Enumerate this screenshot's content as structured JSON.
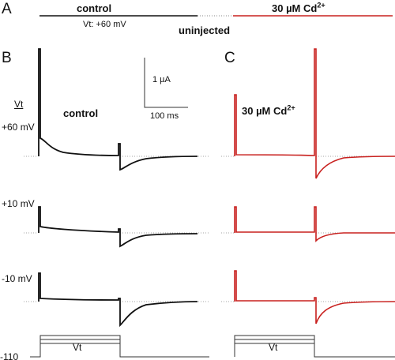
{
  "panels": {
    "a": "A",
    "b": "B",
    "c": "C"
  },
  "header": {
    "control": "control",
    "cd_prefix": "30 µM Cd",
    "cd_sup": "2+",
    "vt_note": "Vt: +60 mV",
    "uninjected": "uninjected"
  },
  "traces": {
    "vt_label": "Vt",
    "plus60": "+60 mV",
    "plus10": "+10 mV",
    "minus10": "-10 mV",
    "col_control": "control",
    "col_cd_prefix": "30 µM Cd",
    "col_cd_sup": "2+"
  },
  "scale_bar": {
    "current": "1 µA",
    "time": "100 ms"
  },
  "protocol": {
    "holding": "-110",
    "step": "Vt"
  },
  "colors": {
    "control": "#111111",
    "cadmium": "#c8201e",
    "zero_line": "#888888"
  }
}
